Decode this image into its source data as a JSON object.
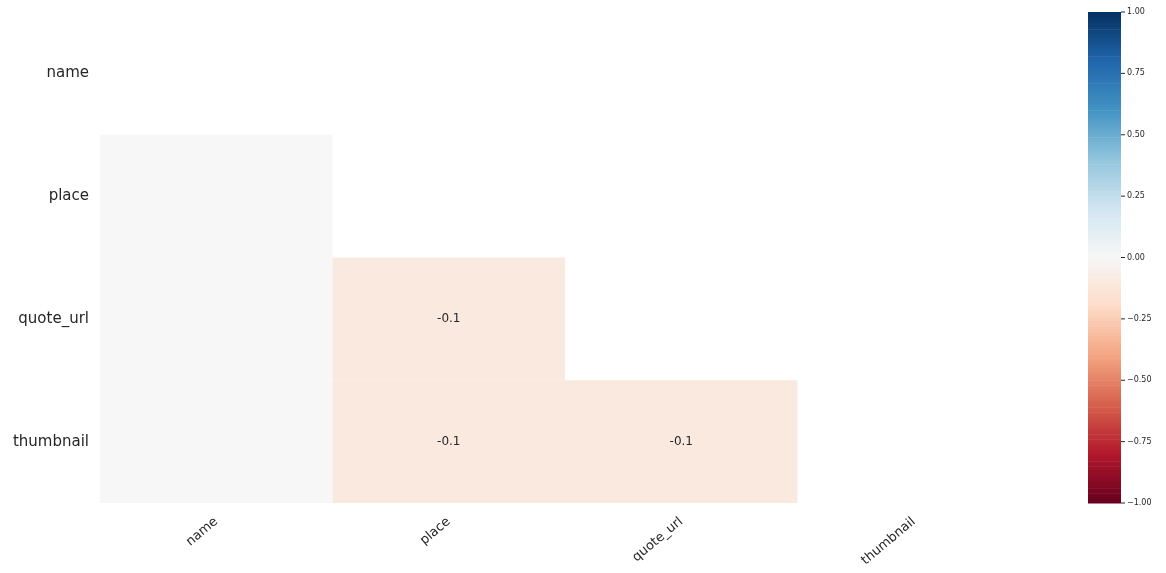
{
  "chart_data": {
    "type": "heatmap",
    "categories": [
      "name",
      "place",
      "quote_url",
      "thumbnail"
    ],
    "y_categories": [
      "name",
      "place",
      "quote_url",
      "thumbnail"
    ],
    "cells": [
      [
        null,
        null,
        null,
        null
      ],
      [
        0,
        null,
        null,
        null
      ],
      [
        0,
        -0.1,
        null,
        null
      ],
      [
        0,
        -0.1,
        -0.1,
        null
      ]
    ],
    "cell_labels": [
      [
        null,
        null,
        null,
        null
      ],
      [
        null,
        null,
        null,
        null
      ],
      [
        null,
        "-0.1",
        null,
        null
      ],
      [
        null,
        "-0.1",
        "-0.1",
        null
      ]
    ],
    "clim": [
      -1,
      1
    ],
    "cticks": [
      {
        "value": 1,
        "label": "1.00"
      },
      {
        "value": 0.75,
        "label": "0.75"
      },
      {
        "value": 0.5,
        "label": "0.50"
      },
      {
        "value": 0.25,
        "label": "0.25"
      },
      {
        "value": 0,
        "label": "0.00"
      },
      {
        "value": -0.25,
        "label": "−0.25"
      },
      {
        "value": -0.5,
        "label": "−0.50"
      },
      {
        "value": -0.75,
        "label": "−0.75"
      },
      {
        "value": -1,
        "label": "−1.00"
      }
    ]
  }
}
